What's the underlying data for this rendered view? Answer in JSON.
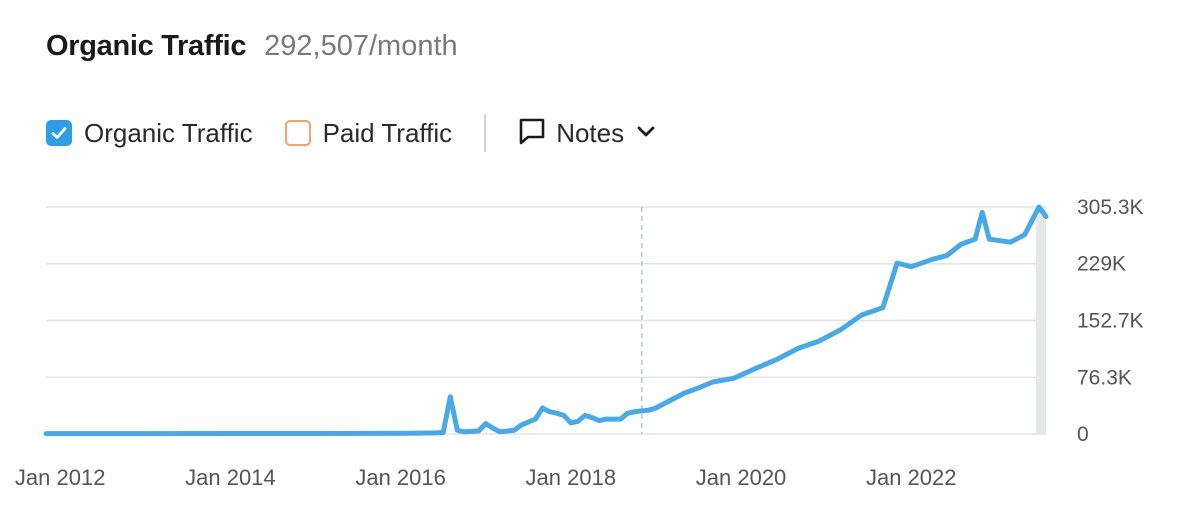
{
  "header": {
    "title": "Organic Traffic",
    "subtitle": "292,507/month"
  },
  "legend": {
    "organic": {
      "label": "Organic Traffic",
      "checked": true,
      "color": "#2f9ee6"
    },
    "paid": {
      "label": "Paid Traffic",
      "checked": false,
      "color": "#f0a36b"
    },
    "notes": {
      "label": "Notes",
      "icon": "comment-icon"
    }
  },
  "colors": {
    "line": "#4aa8e6",
    "grid": "#e3e3e3",
    "marker": "#b9c7cf"
  },
  "chart_data": {
    "type": "line",
    "title": "Organic Traffic",
    "xlabel": "",
    "ylabel": "",
    "x_ticks": [
      "Jan 2012",
      "Jan 2014",
      "Jan 2016",
      "Jan 2018",
      "Jan 2020",
      "Jan 2022"
    ],
    "y_ticks": [
      "0",
      "76.3K",
      "152.7K",
      "229K",
      "305.3K"
    ],
    "y_tick_values": [
      0,
      76300,
      152700,
      229000,
      305300
    ],
    "ylim": [
      0,
      305300
    ],
    "grid": true,
    "legend_position": "top-left",
    "series": [
      {
        "name": "Organic Traffic",
        "color": "#4aa8e6",
        "points": [
          [
            "2011-11",
            500
          ],
          [
            "2012-06",
            500
          ],
          [
            "2013-01",
            600
          ],
          [
            "2014-01",
            700
          ],
          [
            "2015-01",
            700
          ],
          [
            "2016-01",
            800
          ],
          [
            "2016-06",
            1500
          ],
          [
            "2016-07",
            2000
          ],
          [
            "2016-08",
            50000
          ],
          [
            "2016-09",
            5000
          ],
          [
            "2016-10",
            3000
          ],
          [
            "2016-12",
            4000
          ],
          [
            "2017-01",
            14000
          ],
          [
            "2017-02",
            8000
          ],
          [
            "2017-03",
            3000
          ],
          [
            "2017-05",
            5000
          ],
          [
            "2017-06",
            12000
          ],
          [
            "2017-07",
            16000
          ],
          [
            "2017-08",
            20000
          ],
          [
            "2017-09",
            35000
          ],
          [
            "2017-10",
            30000
          ],
          [
            "2017-11",
            28000
          ],
          [
            "2017-12",
            25000
          ],
          [
            "2018-01",
            15000
          ],
          [
            "2018-02",
            17000
          ],
          [
            "2018-03",
            25000
          ],
          [
            "2018-04",
            22000
          ],
          [
            "2018-05",
            18000
          ],
          [
            "2018-06",
            20000
          ],
          [
            "2018-08",
            20000
          ],
          [
            "2018-09",
            28000
          ],
          [
            "2018-10",
            30000
          ],
          [
            "2018-12",
            32000
          ],
          [
            "2019-01",
            35000
          ],
          [
            "2019-03",
            45000
          ],
          [
            "2019-05",
            55000
          ],
          [
            "2019-07",
            62000
          ],
          [
            "2019-09",
            70000
          ],
          [
            "2019-12",
            75000
          ],
          [
            "2020-03",
            88000
          ],
          [
            "2020-06",
            100000
          ],
          [
            "2020-09",
            115000
          ],
          [
            "2020-12",
            125000
          ],
          [
            "2021-03",
            140000
          ],
          [
            "2021-06",
            160000
          ],
          [
            "2021-09",
            170000
          ],
          [
            "2021-11",
            230000
          ],
          [
            "2022-01",
            225000
          ],
          [
            "2022-04",
            235000
          ],
          [
            "2022-06",
            240000
          ],
          [
            "2022-08",
            255000
          ],
          [
            "2022-10",
            262000
          ],
          [
            "2022-11",
            298000
          ],
          [
            "2022-12",
            262000
          ],
          [
            "2023-03",
            258000
          ],
          [
            "2023-05",
            268000
          ],
          [
            "2023-07",
            305300
          ],
          [
            "2023-08",
            292507
          ]
        ]
      }
    ],
    "annotations": [
      {
        "type": "vertical-marker",
        "x": "2018-11"
      }
    ]
  }
}
